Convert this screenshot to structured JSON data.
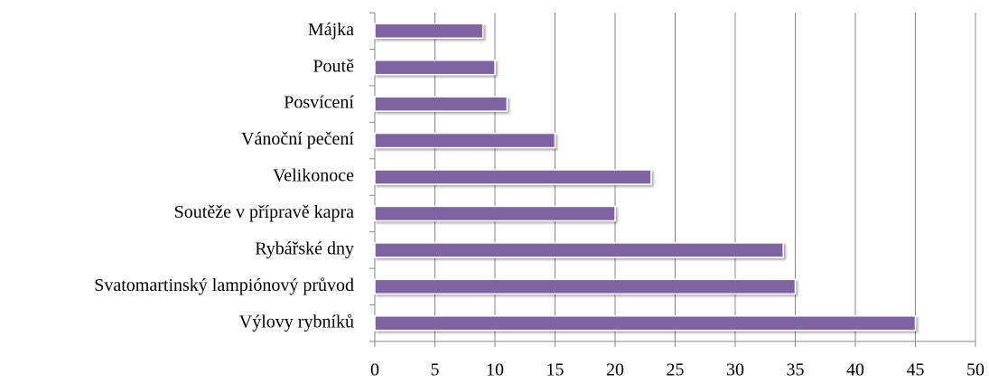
{
  "chart_data": {
    "type": "bar",
    "orientation": "horizontal",
    "categories": [
      "Májka",
      "Poutě",
      "Posvícení",
      "Vánoční pečení",
      "Velikonoce",
      "Soutěže v přípravě kapra",
      "Rybářské dny",
      "Svatomartinský lampiónový průvod",
      "Výlovy rybníků"
    ],
    "values": [
      9,
      10,
      11,
      15,
      23,
      20,
      34,
      35,
      45
    ],
    "color": "#8064a2",
    "xlim": [
      0,
      50
    ],
    "xticks": [
      0,
      5,
      10,
      15,
      20,
      25,
      30,
      35,
      40,
      45,
      50
    ],
    "grid": true
  }
}
